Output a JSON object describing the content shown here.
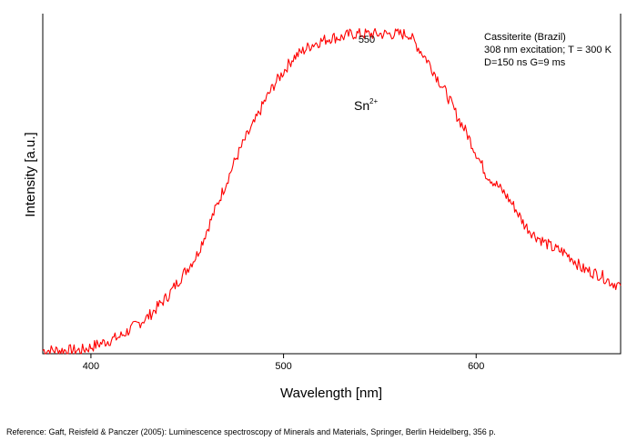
{
  "chart_data": {
    "type": "line",
    "xlabel": "Wavelength [nm]",
    "ylabel": "Intensity [a.u.]",
    "xlim": [
      375,
      675
    ],
    "ylim": [
      0,
      1.0
    ],
    "xticks": [
      400,
      500,
      600
    ],
    "y_ticks_labeled": false,
    "grid": false,
    "line_color": "#ff0000",
    "series": [
      {
        "x": [
          375,
          380,
          385,
          390,
          395,
          400,
          405,
          410,
          415,
          420,
          425,
          430,
          435,
          440,
          445,
          450,
          455,
          460,
          465,
          470,
          475,
          480,
          485,
          490,
          495,
          500,
          505,
          510,
          515,
          520,
          525,
          530,
          535,
          540,
          545,
          550,
          555,
          560,
          565,
          570,
          575,
          580,
          585,
          590,
          595,
          600,
          605,
          610,
          615,
          620,
          625,
          630,
          635,
          640,
          645,
          650,
          655,
          660,
          665,
          670,
          675
        ],
        "values": [
          0.01,
          0.01,
          0.01,
          0.01,
          0.01,
          0.02,
          0.03,
          0.04,
          0.05,
          0.07,
          0.09,
          0.11,
          0.14,
          0.17,
          0.21,
          0.25,
          0.29,
          0.36,
          0.43,
          0.5,
          0.57,
          0.63,
          0.68,
          0.74,
          0.79,
          0.83,
          0.87,
          0.89,
          0.91,
          0.92,
          0.93,
          0.93,
          0.94,
          0.94,
          0.94,
          0.94,
          0.94,
          0.94,
          0.94,
          0.9,
          0.86,
          0.81,
          0.76,
          0.7,
          0.65,
          0.59,
          0.53,
          0.5,
          0.47,
          0.43,
          0.38,
          0.35,
          0.33,
          0.31,
          0.3,
          0.28,
          0.25,
          0.24,
          0.23,
          0.21,
          0.2
        ]
      }
    ],
    "annotations": {
      "peak_label": "550",
      "ion_label": "Sn",
      "ion_charge": "2+",
      "info_lines": [
        "Cassiterite (Brazil)",
        "308 nm excitation; T = 300 K",
        "D=150 ns G=9 ms"
      ]
    }
  },
  "footer": {
    "reference": "Reference: Gaft, Reisfeld & Panczer (2005): Luminescence spectroscopy of Minerals and Materials, Springer, Berlin Heidelberg, 356 p."
  }
}
